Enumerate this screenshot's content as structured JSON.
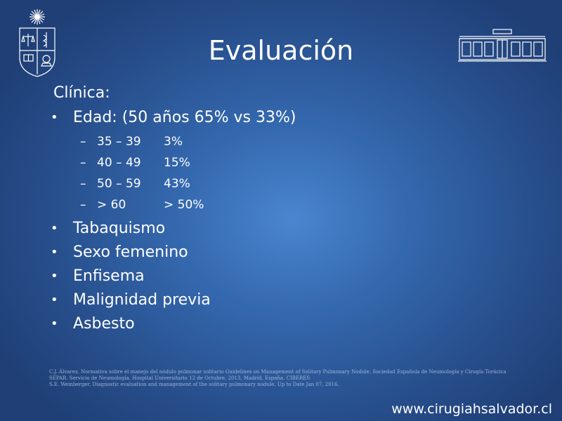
{
  "slide": {
    "title": "Evaluación",
    "subheading": "Clínica:",
    "bullets": [
      {
        "text": "Edad: (50 años 65% vs 33%)",
        "subitems": [
          {
            "range": "35 – 39",
            "value": "3%"
          },
          {
            "range": "40 – 49",
            "value": "15%"
          },
          {
            "range": "50 – 59",
            "value": "43%"
          },
          {
            "range": "> 60",
            "value": "> 50%"
          }
        ]
      },
      {
        "text": "Tabaquismo"
      },
      {
        "text": "Sexo femenino"
      },
      {
        "text": "Enfisema"
      },
      {
        "text": "Malignidad previa"
      },
      {
        "text": "Asbesto"
      }
    ],
    "references": [
      "C.J. Álvarez. Normativa sobre el manejo del nódulo pulmonar solitario Guidelines on Management of Solitary Pulmonary Nodule. Sociedad Española de Neumología y Cirugía Torácica",
      "SEPAR. Servicio de Neumología, Hospital Universitario 12 de Octubre, 2013, Madrid, España. CIBERES",
      "S.E. Weinberger. Diagnostic evaluation and management of the solitary pulmonary nodule. Up to Date Jan 07, 2016."
    ],
    "website": "www.cirugiahsalvador.cl"
  },
  "icons": {
    "left_logo": "university-crest-icon",
    "right_logo": "hospital-building-icon"
  },
  "colors": {
    "background": "#2f5fa3",
    "text": "#ffffff",
    "references": "#9fb4d4"
  }
}
